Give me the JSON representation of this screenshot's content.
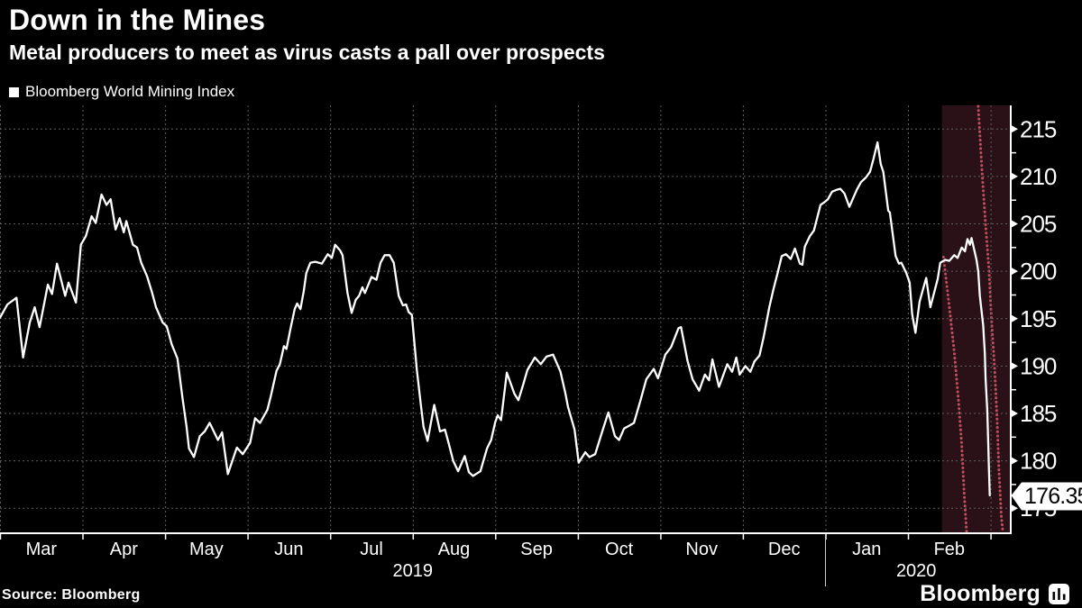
{
  "header": {
    "title": "Down in the Mines",
    "subtitle": "Metal producers to meet as virus casts a pall over prospects"
  },
  "legend": {
    "label": "Bloomberg World Mining Index",
    "marker_color": "#ffffff"
  },
  "footer": {
    "source": "Source:  Bloomberg",
    "brand": "Bloomberg"
  },
  "colors": {
    "background": "#000000",
    "series_line": "#ffffff",
    "grid": "#5f5f5f",
    "axis": "#ffffff",
    "highlight_fill": "#2a1117",
    "highlight_border": "#c24f5f",
    "flag_bg": "#ffffff",
    "flag_text": "#000000"
  },
  "chart_data": {
    "type": "line",
    "title": "Down in the Mines",
    "xlabel": "",
    "ylabel": "",
    "x_axis": {
      "unit": "months since 2019-03-01 (0 = Mar 1 2019)",
      "range": [
        0,
        12.24
      ],
      "month_labels": [
        "Mar",
        "Apr",
        "May",
        "Jun",
        "Jul",
        "Aug",
        "Sep",
        "Oct",
        "Nov",
        "Dec",
        "Jan",
        "Feb"
      ],
      "year_labels": [
        {
          "text": "2019",
          "center_t": 5.0
        },
        {
          "text": "2020",
          "center_t": 11.1
        }
      ],
      "year_separator_t": 10.0,
      "grid": true
    },
    "y_axis": {
      "side": "right",
      "range": [
        172.4,
        217.4
      ],
      "major_ticks": [
        175,
        180,
        185,
        190,
        195,
        200,
        205,
        210,
        215
      ],
      "minor_tick_step": 2.5,
      "grid": true
    },
    "highlight_region": {
      "from_t": 11.41,
      "to_t": 12.24,
      "left_dotted_border": [
        [
          11.43,
          201.5
        ],
        [
          11.5,
          196.3
        ],
        [
          11.56,
          191.5
        ],
        [
          11.61,
          186.5
        ],
        [
          11.65,
          181.7
        ],
        [
          11.68,
          176.6
        ],
        [
          11.71,
          172.4
        ]
      ],
      "right_dotted_border": [
        [
          11.85,
          217.4
        ],
        [
          11.9,
          210.1
        ],
        [
          11.94,
          204.9
        ],
        [
          11.98,
          200.2
        ],
        [
          12.01,
          195.1
        ],
        [
          12.05,
          189.6
        ],
        [
          12.08,
          184.2
        ],
        [
          12.1,
          179.2
        ],
        [
          12.13,
          174.2
        ],
        [
          12.15,
          172.4
        ]
      ]
    },
    "last_point": {
      "t": 11.99,
      "value": 176.35,
      "label": "176.35"
    },
    "series": [
      {
        "name": "Bloomberg World Mining Index",
        "color": "#ffffff",
        "points": [
          [
            0,
            195.1
          ],
          [
            0.09,
            196.5
          ],
          [
            0.2,
            197.2
          ],
          [
            0.28,
            190.9
          ],
          [
            0.36,
            194.6
          ],
          [
            0.42,
            196.2
          ],
          [
            0.48,
            194.1
          ],
          [
            0.58,
            198.6
          ],
          [
            0.63,
            197.6
          ],
          [
            0.69,
            200.8
          ],
          [
            0.79,
            197.4
          ],
          [
            0.83,
            198.8
          ],
          [
            0.92,
            196.7
          ],
          [
            0.98,
            202.8
          ],
          [
            1.04,
            203.7
          ],
          [
            1.11,
            205.8
          ],
          [
            1.16,
            205.1
          ],
          [
            1.23,
            208.1
          ],
          [
            1.29,
            207.0
          ],
          [
            1.34,
            207.6
          ],
          [
            1.4,
            204.4
          ],
          [
            1.45,
            205.6
          ],
          [
            1.5,
            204.1
          ],
          [
            1.53,
            205.3
          ],
          [
            1.61,
            202.8
          ],
          [
            1.66,
            202.5
          ],
          [
            1.71,
            200.9
          ],
          [
            1.78,
            199.5
          ],
          [
            1.84,
            197.8
          ],
          [
            1.89,
            196.2
          ],
          [
            1.97,
            194.6
          ],
          [
            2.02,
            194.2
          ],
          [
            2.08,
            192.3
          ],
          [
            2.15,
            190.8
          ],
          [
            2.21,
            186.7
          ],
          [
            2.26,
            183.6
          ],
          [
            2.29,
            181.3
          ],
          [
            2.35,
            180.4
          ],
          [
            2.42,
            182.6
          ],
          [
            2.48,
            183.1
          ],
          [
            2.54,
            184.0
          ],
          [
            2.64,
            182.2
          ],
          [
            2.69,
            183.0
          ],
          [
            2.76,
            178.6
          ],
          [
            2.87,
            181.4
          ],
          [
            2.94,
            180.7
          ],
          [
            3.03,
            181.9
          ],
          [
            3.09,
            184.5
          ],
          [
            3.15,
            184.0
          ],
          [
            3.24,
            185.4
          ],
          [
            3.28,
            186.8
          ],
          [
            3.35,
            189.5
          ],
          [
            3.39,
            190.2
          ],
          [
            3.44,
            192.1
          ],
          [
            3.47,
            191.8
          ],
          [
            3.52,
            194.0
          ],
          [
            3.57,
            196.0
          ],
          [
            3.6,
            196.6
          ],
          [
            3.64,
            196.0
          ],
          [
            3.68,
            197.9
          ],
          [
            3.71,
            199.8
          ],
          [
            3.76,
            200.9
          ],
          [
            3.82,
            201.0
          ],
          [
            3.9,
            200.8
          ],
          [
            3.97,
            201.8
          ],
          [
            4.02,
            201.4
          ],
          [
            4.06,
            202.8
          ],
          [
            4.12,
            202.2
          ],
          [
            4.15,
            201.7
          ],
          [
            4.21,
            197.7
          ],
          [
            4.26,
            195.6
          ],
          [
            4.31,
            197.0
          ],
          [
            4.35,
            197.4
          ],
          [
            4.39,
            198.3
          ],
          [
            4.42,
            197.7
          ],
          [
            4.5,
            199.4
          ],
          [
            4.56,
            199.1
          ],
          [
            4.61,
            200.9
          ],
          [
            4.66,
            201.7
          ],
          [
            4.72,
            201.7
          ],
          [
            4.77,
            200.9
          ],
          [
            4.83,
            197.4
          ],
          [
            4.88,
            196.4
          ],
          [
            4.92,
            196.5
          ],
          [
            4.95,
            195.7
          ],
          [
            4.99,
            195.4
          ],
          [
            5.05,
            189.6
          ],
          [
            5.1,
            185.8
          ],
          [
            5.13,
            183.6
          ],
          [
            5.18,
            182.1
          ],
          [
            5.26,
            185.9
          ],
          [
            5.33,
            183.1
          ],
          [
            5.39,
            183.3
          ],
          [
            5.44,
            181.7
          ],
          [
            5.49,
            180.0
          ],
          [
            5.55,
            178.9
          ],
          [
            5.63,
            180.5
          ],
          [
            5.68,
            178.8
          ],
          [
            5.73,
            178.4
          ],
          [
            5.82,
            178.9
          ],
          [
            5.9,
            181.3
          ],
          [
            5.95,
            182.2
          ],
          [
            6.0,
            184.1
          ],
          [
            6.03,
            184.8
          ],
          [
            6.07,
            184.3
          ],
          [
            6.14,
            189.3
          ],
          [
            6.23,
            187.1
          ],
          [
            6.28,
            186.4
          ],
          [
            6.33,
            187.8
          ],
          [
            6.39,
            189.6
          ],
          [
            6.48,
            190.9
          ],
          [
            6.55,
            190.2
          ],
          [
            6.62,
            191.0
          ],
          [
            6.7,
            191.2
          ],
          [
            6.79,
            189.4
          ],
          [
            6.85,
            187.1
          ],
          [
            6.88,
            185.7
          ],
          [
            6.96,
            183.3
          ],
          [
            7.01,
            179.8
          ],
          [
            7.09,
            180.9
          ],
          [
            7.14,
            180.4
          ],
          [
            7.21,
            180.7
          ],
          [
            7.3,
            183.2
          ],
          [
            7.37,
            185.1
          ],
          [
            7.45,
            182.6
          ],
          [
            7.5,
            182.2
          ],
          [
            7.56,
            183.4
          ],
          [
            7.62,
            183.7
          ],
          [
            7.68,
            184.0
          ],
          [
            7.76,
            186.4
          ],
          [
            7.83,
            188.6
          ],
          [
            7.92,
            189.7
          ],
          [
            7.97,
            188.7
          ],
          [
            8.06,
            191.2
          ],
          [
            8.13,
            192.0
          ],
          [
            8.22,
            194.0
          ],
          [
            8.25,
            194.1
          ],
          [
            8.33,
            190.5
          ],
          [
            8.39,
            188.6
          ],
          [
            8.47,
            187.4
          ],
          [
            8.54,
            189.1
          ],
          [
            8.59,
            188.5
          ],
          [
            8.63,
            190.7
          ],
          [
            8.71,
            187.8
          ],
          [
            8.76,
            189.0
          ],
          [
            8.81,
            190.2
          ],
          [
            8.87,
            189.4
          ],
          [
            8.92,
            190.9
          ],
          [
            8.96,
            189.1
          ],
          [
            9.03,
            190.0
          ],
          [
            9.09,
            189.4
          ],
          [
            9.14,
            190.5
          ],
          [
            9.2,
            191.1
          ],
          [
            9.25,
            193.0
          ],
          [
            9.32,
            196.2
          ],
          [
            9.37,
            198.1
          ],
          [
            9.42,
            199.8
          ],
          [
            9.47,
            201.6
          ],
          [
            9.52,
            201.8
          ],
          [
            9.58,
            201.3
          ],
          [
            9.63,
            202.4
          ],
          [
            9.69,
            200.8
          ],
          [
            9.72,
            200.7
          ],
          [
            9.75,
            202.6
          ],
          [
            9.81,
            203.7
          ],
          [
            9.86,
            204.3
          ],
          [
            9.94,
            207.0
          ],
          [
            9.99,
            207.3
          ],
          [
            10.03,
            207.6
          ],
          [
            10.08,
            208.4
          ],
          [
            10.14,
            208.6
          ],
          [
            10.18,
            208.7
          ],
          [
            10.23,
            208.2
          ],
          [
            10.29,
            206.8
          ],
          [
            10.38,
            208.6
          ],
          [
            10.43,
            209.4
          ],
          [
            10.49,
            209.9
          ],
          [
            10.54,
            210.5
          ],
          [
            10.58,
            211.8
          ],
          [
            10.63,
            213.6
          ],
          [
            10.67,
            211.3
          ],
          [
            10.7,
            210.5
          ],
          [
            10.76,
            206.4
          ],
          [
            10.78,
            206.2
          ],
          [
            10.85,
            201.6
          ],
          [
            10.89,
            200.8
          ],
          [
            10.92,
            200.9
          ],
          [
            10.98,
            199.8
          ],
          [
            11.02,
            198.8
          ],
          [
            11.05,
            195.5
          ],
          [
            11.09,
            193.5
          ],
          [
            11.14,
            196.8
          ],
          [
            11.22,
            199.3
          ],
          [
            11.27,
            196.2
          ],
          [
            11.36,
            199.2
          ],
          [
            11.39,
            200.9
          ],
          [
            11.45,
            201.2
          ],
          [
            11.5,
            201.1
          ],
          [
            11.56,
            201.7
          ],
          [
            11.6,
            201.4
          ],
          [
            11.65,
            202.5
          ],
          [
            11.69,
            202.1
          ],
          [
            11.72,
            203.4
          ],
          [
            11.75,
            202.8
          ],
          [
            11.77,
            203.5
          ],
          [
            11.83,
            201.2
          ],
          [
            11.85,
            200.0
          ],
          [
            11.87,
            197.4
          ],
          [
            11.91,
            194.3
          ],
          [
            11.93,
            191.4
          ],
          [
            11.94,
            188.6
          ],
          [
            11.96,
            185.4
          ],
          [
            11.97,
            182.2
          ],
          [
            11.98,
            179.1
          ],
          [
            11.99,
            176.35
          ]
        ]
      }
    ]
  }
}
